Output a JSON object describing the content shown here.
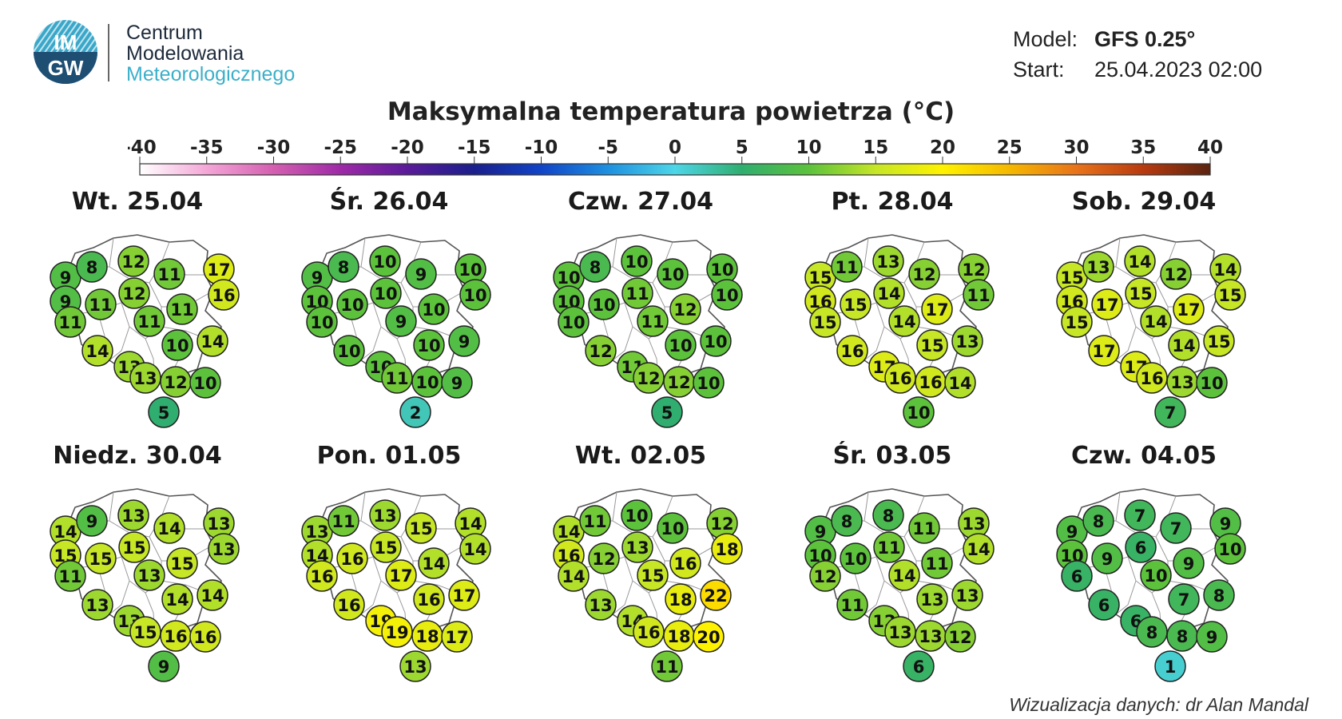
{
  "logo": {
    "badge_top": "IM",
    "badge_bottom": "GW",
    "line1": "Centrum",
    "line2": "Modelowania",
    "line3": "Meteorologicznego"
  },
  "meta": {
    "model_label": "Model:",
    "model_value": "GFS 0.25°",
    "start_label": "Start:",
    "start_value": "25.04.2023 02:00"
  },
  "title": "Maksymalna temperatura powietrza (°C)",
  "scale": {
    "ticks": [
      "-40",
      "-35",
      "-30",
      "-25",
      "-20",
      "-15",
      "-10",
      "-5",
      "0",
      "5",
      "10",
      "15",
      "20",
      "25",
      "30",
      "35",
      "40"
    ],
    "colors": [
      [
        -40,
        "#ffffff"
      ],
      [
        -35,
        "#f4a6d7"
      ],
      [
        -30,
        "#d45fb0"
      ],
      [
        -25,
        "#9e2aa8"
      ],
      [
        -20,
        "#5a1b9a"
      ],
      [
        -15,
        "#1a1f8c"
      ],
      [
        -10,
        "#1144c8"
      ],
      [
        -5,
        "#1e90e0"
      ],
      [
        0,
        "#4dd6e8"
      ],
      [
        5,
        "#2fae6f"
      ],
      [
        10,
        "#5cc23c"
      ],
      [
        15,
        "#c6e626"
      ],
      [
        20,
        "#fff200"
      ],
      [
        25,
        "#f5b800"
      ],
      [
        30,
        "#e8731a"
      ],
      [
        35,
        "#b83a10"
      ],
      [
        40,
        "#5a2410"
      ]
    ]
  },
  "days": [
    {
      "label": "Wt. 25.04",
      "values": [
        9,
        8,
        12,
        11,
        17,
        9,
        11,
        12,
        16,
        11,
        11,
        11,
        14,
        10,
        14,
        13,
        13,
        12,
        10,
        5
      ]
    },
    {
      "label": "Śr. 26.04",
      "values": [
        9,
        8,
        10,
        9,
        10,
        10,
        10,
        10,
        10,
        10,
        10,
        9,
        10,
        10,
        9,
        10,
        11,
        10,
        9,
        2
      ]
    },
    {
      "label": "Czw. 27.04",
      "values": [
        10,
        8,
        10,
        10,
        10,
        10,
        10,
        11,
        10,
        12,
        10,
        11,
        12,
        10,
        10,
        11,
        12,
        12,
        10,
        5
      ]
    },
    {
      "label": "Pt. 28.04",
      "values": [
        15,
        11,
        13,
        12,
        12,
        16,
        15,
        14,
        11,
        17,
        15,
        14,
        16,
        15,
        13,
        17,
        16,
        16,
        14,
        10
      ]
    },
    {
      "label": "Sob. 29.04",
      "values": [
        15,
        13,
        14,
        12,
        14,
        16,
        17,
        15,
        15,
        17,
        15,
        14,
        17,
        14,
        15,
        17,
        16,
        13,
        10,
        7
      ]
    },
    {
      "label": "Niedz. 30.04",
      "values": [
        14,
        9,
        13,
        14,
        13,
        15,
        15,
        15,
        13,
        15,
        11,
        13,
        13,
        14,
        14,
        13,
        15,
        16,
        16,
        9
      ]
    },
    {
      "label": "Pon. 01.05",
      "values": [
        13,
        11,
        13,
        15,
        14,
        14,
        16,
        15,
        14,
        14,
        16,
        17,
        16,
        16,
        17,
        19,
        19,
        18,
        17,
        13
      ]
    },
    {
      "label": "Wt. 02.05",
      "values": [
        14,
        11,
        10,
        10,
        12,
        16,
        12,
        13,
        18,
        16,
        14,
        15,
        13,
        18,
        22,
        14,
        16,
        18,
        20,
        11
      ]
    },
    {
      "label": "Śr. 03.05",
      "values": [
        9,
        8,
        8,
        11,
        13,
        10,
        10,
        11,
        14,
        11,
        12,
        14,
        11,
        13,
        13,
        12,
        13,
        13,
        12,
        6
      ]
    },
    {
      "label": "Czw. 04.05",
      "values": [
        9,
        8,
        7,
        7,
        9,
        10,
        9,
        6,
        10,
        9,
        6,
        10,
        6,
        7,
        8,
        6,
        8,
        8,
        9,
        1
      ]
    }
  ],
  "credit": "Wizualizacja danych: dr Alan Mandal"
}
